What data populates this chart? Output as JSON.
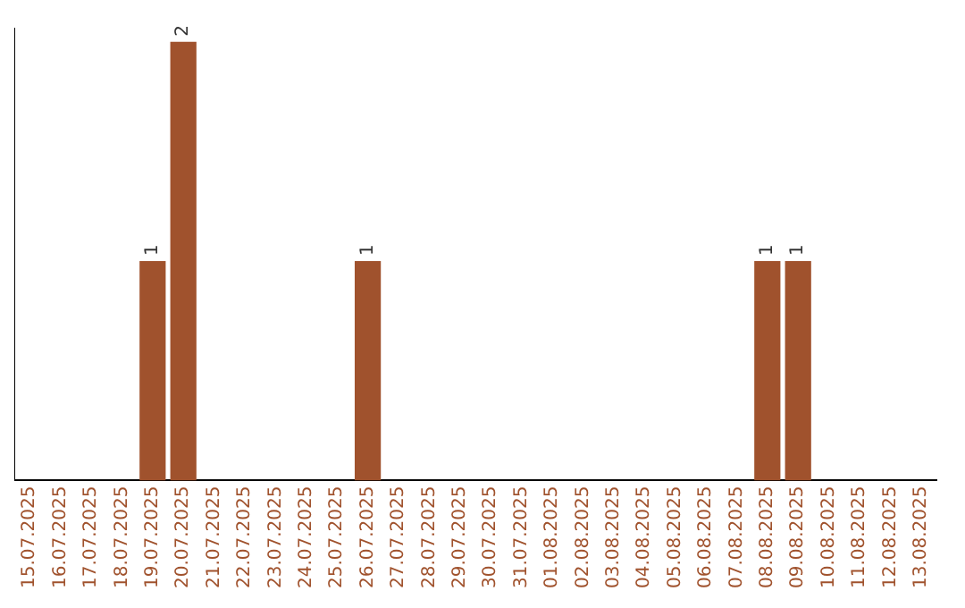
{
  "chart_data": {
    "type": "bar",
    "categories": [
      "15.07.2025",
      "16.07.2025",
      "17.07.2025",
      "18.07.2025",
      "19.07.2025",
      "20.07.2025",
      "21.07.2025",
      "22.07.2025",
      "23.07.2025",
      "24.07.2025",
      "25.07.2025",
      "26.07.2025",
      "27.07.2025",
      "28.07.2025",
      "29.07.2025",
      "30.07.2025",
      "31.07.2025",
      "01.08.2025",
      "02.08.2025",
      "03.08.2025",
      "04.08.2025",
      "05.08.2025",
      "06.08.2025",
      "07.08.2025",
      "08.08.2025",
      "09.08.2025",
      "10.08.2025",
      "11.08.2025",
      "12.08.2025",
      "13.08.2025"
    ],
    "values": [
      0,
      0,
      0,
      0,
      1,
      2,
      0,
      0,
      0,
      0,
      0,
      1,
      0,
      0,
      0,
      0,
      0,
      0,
      0,
      0,
      0,
      0,
      0,
      0,
      1,
      1,
      0,
      0,
      0,
      0
    ],
    "value_labels": [
      null,
      null,
      null,
      null,
      "1",
      "2",
      null,
      null,
      null,
      null,
      null,
      "1",
      null,
      null,
      null,
      null,
      null,
      null,
      null,
      null,
      null,
      null,
      null,
      null,
      "1",
      "1",
      null,
      null,
      null,
      null
    ],
    "color": "#a0522d",
    "grid": false,
    "legend": false
  }
}
